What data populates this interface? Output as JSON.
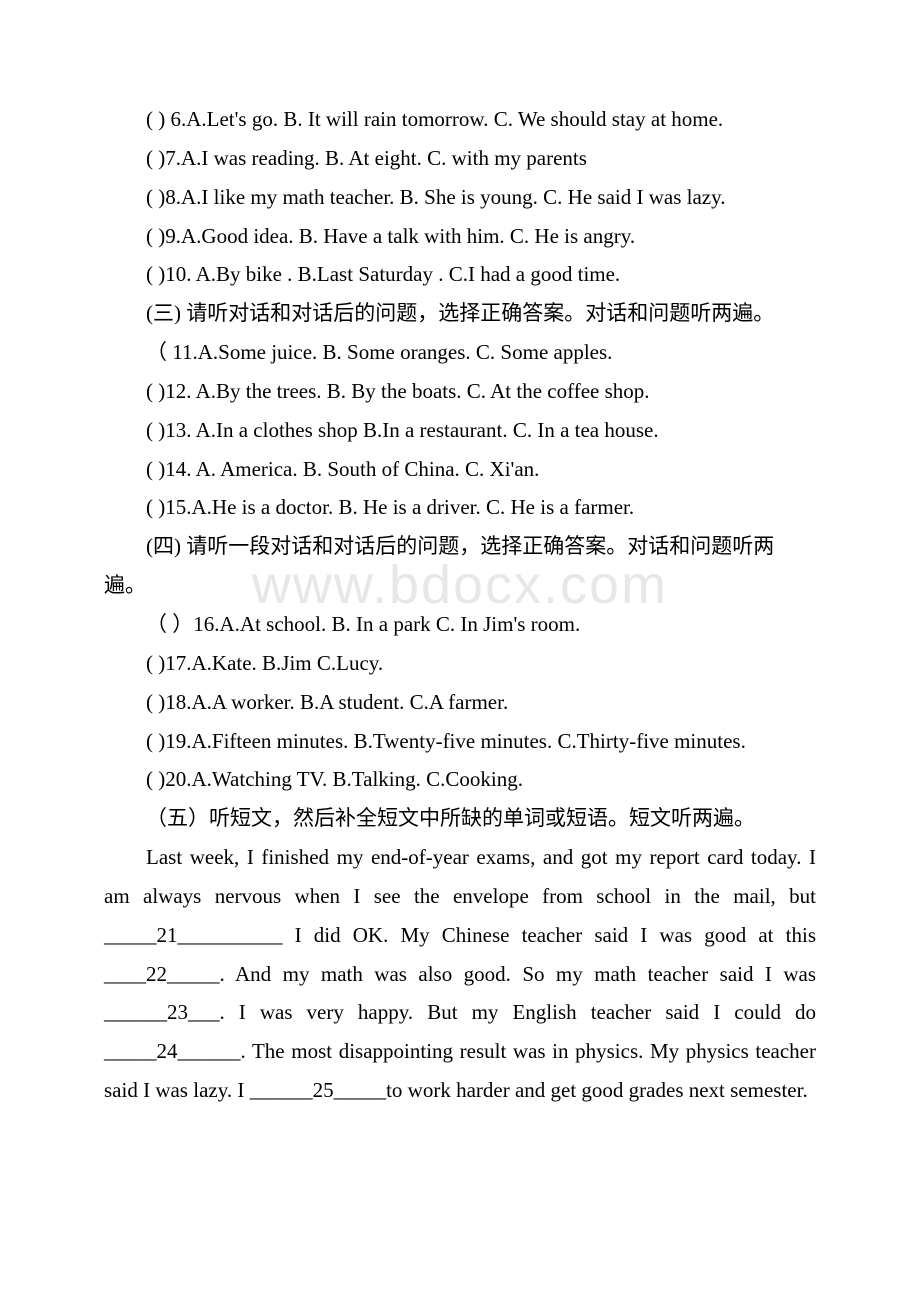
{
  "watermark": "www.bdocx.com",
  "q6": "( ) 6.A.Let's go. B. It will rain tomorrow. C. We should stay at home.",
  "q7": "( )7.A.I was reading. B. At eight. C. with my parents",
  "q8": "( )8.A.I like my math teacher. B. She is young. C. He said I was lazy.",
  "q9": "( )9.A.Good idea. B. Have a talk with him. C. He is angry.",
  "q10": "( )10. A.By bike . B.Last Saturday . C.I had a good time.",
  "section3": "(三) 请听对话和对话后的问题，选择正确答案。对话和问题听两遍。",
  "q11": "（ 11.A.Some juice. B. Some oranges. C. Some apples.",
  "q12": "( )12. A.By the trees. B. By the boats. C. At the coffee shop.",
  "q13": "( )13. A.In a clothes shop B.In a restaurant. C. In a tea house.",
  "q14": "( )14. A. America. B. South of China. C. Xi'an.",
  "q15": "( )15.A.He is a doctor. B. He is a driver. C. He is a farmer.",
  "section4": "(四) 请听一段对话和对话后的问题，选择正确答案。对话和问题听两遍。",
  "q16": "（ ）16.A.At school. B. In a park C. In Jim's room.",
  "q17": "( )17.A.Kate. B.Jim C.Lucy.",
  "q18": "( )18.A.A worker. B.A student. C.A farmer.",
  "q19": "( )19.A.Fifteen minutes. B.Twenty-five minutes. C.Thirty-five minutes.",
  "q20": "( )20.A.Watching TV. B.Talking. C.Cooking.",
  "section5": "（五）听短文，然后补全短文中所缺的单词或短语。短文听两遍。",
  "passage": "Last week, I finished my end-of-year exams, and got my report card today. I am always nervous when I see the envelope from school in the mail, but _____21__________ I did OK. My Chinese teacher said I was good at this ____22_____. And my math was also good. So my math teacher said I was ______23___. I was very happy. But my English teacher said I could do _____24______. The most disappointing result was in physics. My physics teacher said I was lazy. I ______25_____to work harder and get good grades next semester."
}
